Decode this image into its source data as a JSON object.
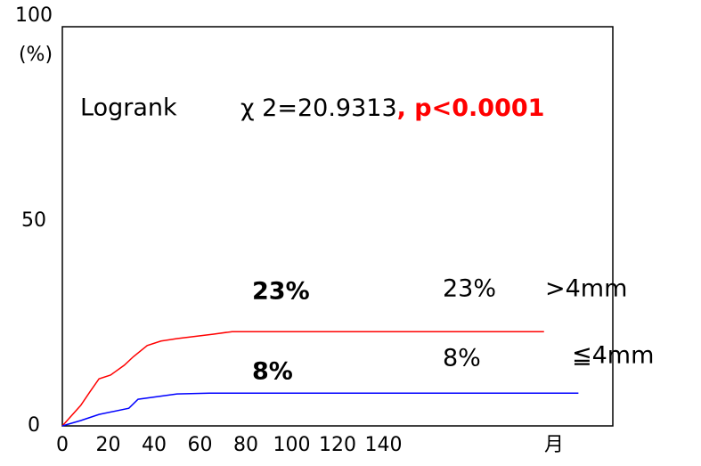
{
  "chart_data": {
    "type": "line",
    "y_label": "(%)",
    "x_label": "月",
    "xlim": [
      0,
      240
    ],
    "ylim": [
      0,
      100
    ],
    "xticks": [
      0,
      20,
      40,
      60,
      80,
      100,
      120,
      140
    ],
    "yticks": [
      0,
      50,
      100
    ],
    "series": [
      {
        "name": ">4mm",
        "color": "#ff0000",
        "x": [
          0,
          8,
          12,
          16,
          21,
          27,
          31,
          37,
          43,
          50,
          56,
          66,
          74,
          210
        ],
        "values": [
          0,
          5,
          8.3,
          11.5,
          12.4,
          14.8,
          16.9,
          19.6,
          20.7,
          21.3,
          21.7,
          22.4,
          23,
          23
        ]
      },
      {
        "name": "≦4mm",
        "color": "#0000ff",
        "x": [
          0,
          8,
          16,
          29,
          33,
          50,
          64,
          85,
          225
        ],
        "values": [
          0,
          1.3,
          2.8,
          4.3,
          6.5,
          7.8,
          8,
          8,
          8
        ]
      }
    ],
    "annotations": {
      "logrank": "Logrank",
      "chi": "χ 2=20.9313",
      "p": ", p<0.0001",
      "red_bold": "23%",
      "blue_bold": "8%",
      "red_plain": "23%",
      "blue_plain": "8%"
    }
  }
}
